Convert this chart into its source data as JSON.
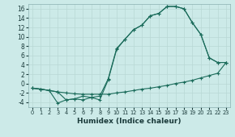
{
  "xlabel": "Humidex (Indice chaleur)",
  "bg_color": "#cceae8",
  "grid_color": "#b8d8d5",
  "line_color": "#1a6b5a",
  "xlim": [
    -0.5,
    23.5
  ],
  "ylim": [
    -5,
    17
  ],
  "yticks": [
    -4,
    -2,
    0,
    2,
    4,
    6,
    8,
    10,
    12,
    14,
    16
  ],
  "xticks": [
    0,
    1,
    2,
    3,
    4,
    5,
    6,
    7,
    8,
    9,
    10,
    11,
    12,
    13,
    14,
    15,
    16,
    17,
    18,
    19,
    20,
    21,
    22,
    23
  ],
  "line1_x": [
    0,
    1,
    2,
    3,
    4,
    5,
    6,
    7,
    8,
    9,
    10,
    11,
    12,
    13,
    14,
    15,
    16,
    17,
    18,
    19,
    20,
    21,
    22,
    23
  ],
  "line1_y": [
    -1.0,
    -1.2,
    -1.5,
    -1.8,
    -2.0,
    -2.2,
    -2.3,
    -2.3,
    -2.3,
    -2.3,
    -2.0,
    -1.8,
    -1.5,
    -1.2,
    -1.0,
    -0.7,
    -0.4,
    -0.0,
    0.3,
    0.7,
    1.2,
    1.7,
    2.2,
    4.5
  ],
  "line2_x": [
    0,
    1,
    2,
    3,
    4,
    5,
    6,
    7,
    8,
    9,
    10,
    11,
    12,
    13,
    14,
    15,
    16,
    17,
    18,
    19,
    20,
    21,
    22,
    23
  ],
  "line2_y": [
    -1.0,
    -1.2,
    -1.5,
    -4.2,
    -3.5,
    -3.3,
    -3.5,
    -3.0,
    -3.5,
    0.8,
    7.3,
    9.5,
    11.5,
    12.5,
    14.5,
    15.0,
    16.5,
    16.5,
    16.0,
    13.0,
    10.5,
    5.5,
    4.5,
    4.5
  ],
  "line3_x": [
    0,
    1,
    2,
    3,
    4,
    5,
    6,
    7,
    8,
    9,
    10,
    11,
    12,
    13,
    14,
    15,
    16,
    17,
    18,
    19,
    20,
    21,
    22,
    23
  ],
  "line3_y": [
    -1.0,
    -1.2,
    -1.5,
    -1.8,
    -3.5,
    -3.3,
    -2.7,
    -3.0,
    -2.7,
    1.0,
    7.5,
    9.5,
    11.5,
    12.5,
    14.5,
    15.0,
    16.5,
    16.5,
    16.0,
    13.0,
    10.5,
    5.5,
    4.5,
    4.5
  ]
}
